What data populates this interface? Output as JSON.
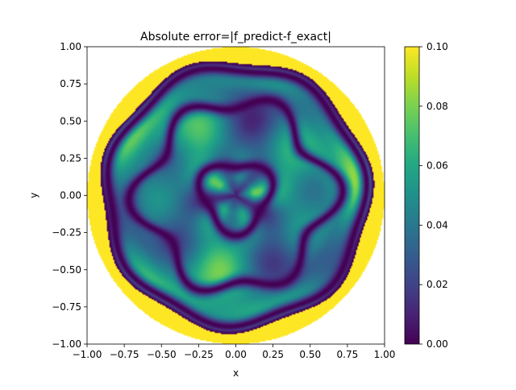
{
  "chart_data": {
    "type": "heatmap",
    "title": "Absolute error=|f_predict-f_exact|",
    "xlabel": "x",
    "ylabel": "y",
    "xlim": [
      -1.0,
      1.0
    ],
    "ylim": [
      -1.0,
      1.0
    ],
    "x_ticks": [
      "−1.00",
      "−0.75",
      "−0.50",
      "−0.25",
      "0.00",
      "0.25",
      "0.50",
      "0.75",
      "1.00"
    ],
    "y_ticks": [
      "−1.00",
      "−0.75",
      "−0.50",
      "−0.25",
      "0.00",
      "0.25",
      "0.50",
      "0.75",
      "1.00"
    ],
    "x_tick_values": [
      -1.0,
      -0.75,
      -0.5,
      -0.25,
      0.0,
      0.25,
      0.5,
      0.75,
      1.0
    ],
    "y_tick_values": [
      -1.0,
      -0.75,
      -0.5,
      -0.25,
      0.0,
      0.25,
      0.5,
      0.75,
      1.0
    ],
    "colorbar": {
      "colormap": "viridis",
      "range": [
        0.0,
        0.1
      ],
      "ticks": [
        "0.00",
        "0.02",
        "0.04",
        "0.06",
        "0.08",
        "0.10"
      ],
      "tick_values": [
        0.0,
        0.02,
        0.04,
        0.06,
        0.08,
        0.1
      ]
    },
    "domain": "disk",
    "domain_radius": 1.0,
    "grid": false,
    "colors": {
      "viridis_low": "#440154",
      "viridis_mid": "#21918c",
      "viridis_high": "#fde725"
    }
  }
}
